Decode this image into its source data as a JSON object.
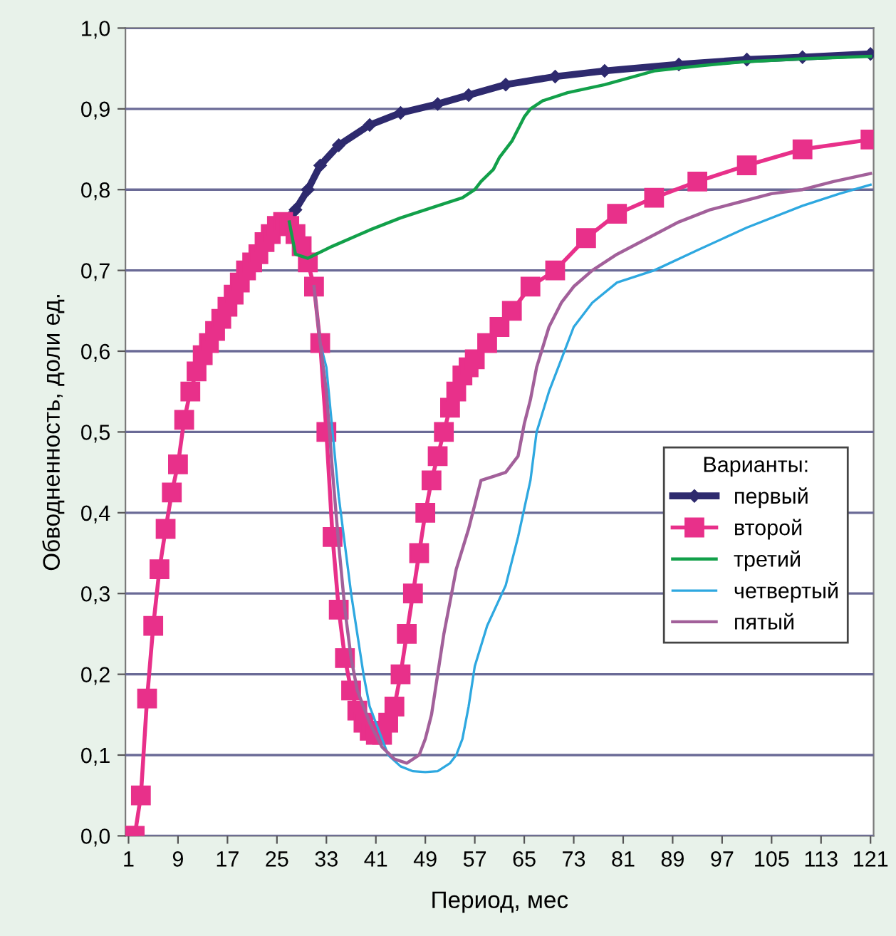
{
  "chart_data": {
    "type": "line",
    "xlabel": "Период, мес",
    "ylabel": "Обводненность, доли ед.",
    "legend_title": "Варианты:",
    "legend": "right",
    "grid": "y",
    "xlim": [
      0.5,
      121.5
    ],
    "xticks": [
      1,
      9,
      17,
      25,
      33,
      41,
      49,
      57,
      65,
      73,
      81,
      89,
      97,
      105,
      113,
      121
    ],
    "ylim": [
      0,
      1
    ],
    "yticks": [
      {
        "value": 0,
        "label": "0,0"
      },
      {
        "value": 0.1,
        "label": "0,1"
      },
      {
        "value": 0.2,
        "label": "0,2"
      },
      {
        "value": 0.3,
        "label": "0,3"
      },
      {
        "value": 0.4,
        "label": "0,4"
      },
      {
        "value": 0.5,
        "label": "0,5"
      },
      {
        "value": 0.6,
        "label": "0,6"
      },
      {
        "value": 0.7,
        "label": "0,7"
      },
      {
        "value": 0.8,
        "label": "0,8"
      },
      {
        "value": 0.9,
        "label": "0,9"
      },
      {
        "value": 1,
        "label": "1,0"
      }
    ],
    "series": [
      {
        "name": "первый",
        "color": "#2e2a6e",
        "marker": "diamond",
        "x": [
          26,
          27,
          28,
          30,
          32,
          35,
          40,
          45,
          51,
          56,
          62,
          70,
          78,
          90,
          101,
          110,
          121
        ],
        "values": [
          0.76,
          0.765,
          0.775,
          0.8,
          0.83,
          0.855,
          0.88,
          0.895,
          0.906,
          0.917,
          0.93,
          0.94,
          0.947,
          0.955,
          0.961,
          0.964,
          0.968
        ]
      },
      {
        "name": "второй",
        "color": "#e8308a",
        "marker": "square",
        "x": [
          1,
          2,
          3,
          4,
          5,
          6,
          7,
          8,
          9,
          10,
          11,
          12,
          13,
          14,
          15,
          16,
          17,
          18,
          19,
          20,
          21,
          22,
          23,
          24,
          25,
          26,
          27,
          28,
          29,
          30,
          31,
          32,
          33,
          34,
          35,
          36,
          37,
          38,
          39,
          40,
          41,
          42,
          43,
          44,
          45,
          46,
          47,
          48,
          49,
          50,
          51,
          52,
          53,
          54,
          55,
          56,
          57,
          59,
          61,
          63,
          66,
          70,
          75,
          80,
          86,
          93,
          101,
          110,
          121
        ],
        "values": [
          0,
          0,
          0.05,
          0.17,
          0.26,
          0.33,
          0.38,
          0.425,
          0.46,
          0.515,
          0.55,
          0.575,
          0.595,
          0.61,
          0.625,
          0.64,
          0.655,
          0.67,
          0.685,
          0.7,
          0.71,
          0.72,
          0.735,
          0.745,
          0.755,
          0.76,
          0.755,
          0.745,
          0.73,
          0.71,
          0.68,
          0.61,
          0.5,
          0.37,
          0.28,
          0.22,
          0.18,
          0.155,
          0.14,
          0.13,
          0.125,
          0.125,
          0.14,
          0.16,
          0.2,
          0.25,
          0.3,
          0.35,
          0.4,
          0.44,
          0.47,
          0.5,
          0.53,
          0.55,
          0.57,
          0.58,
          0.59,
          0.61,
          0.63,
          0.65,
          0.68,
          0.7,
          0.74,
          0.77,
          0.79,
          0.81,
          0.83,
          0.85,
          0.862
        ]
      },
      {
        "name": "третий",
        "color": "#12a04a",
        "marker": "none",
        "x": [
          27,
          28,
          30,
          34,
          40,
          45,
          51,
          55,
          57,
          58,
          60,
          61,
          63,
          65,
          66,
          68,
          72,
          78,
          86,
          93,
          100,
          110,
          121
        ],
        "values": [
          0.76,
          0.72,
          0.715,
          0.73,
          0.75,
          0.765,
          0.78,
          0.79,
          0.8,
          0.81,
          0.825,
          0.84,
          0.86,
          0.89,
          0.9,
          0.91,
          0.92,
          0.93,
          0.947,
          0.953,
          0.958,
          0.962,
          0.965
        ]
      },
      {
        "name": "четвертый",
        "color": "#2ea8e0",
        "marker": "none",
        "x": [
          31,
          32,
          33,
          34,
          35,
          36,
          37,
          38,
          39,
          40,
          42,
          43,
          45,
          47,
          49,
          51,
          53,
          54,
          55,
          56,
          57,
          59,
          62,
          64,
          66,
          67,
          69,
          71,
          73,
          76,
          80,
          86,
          93,
          101,
          110,
          116,
          121
        ],
        "values": [
          0.68,
          0.61,
          0.58,
          0.5,
          0.42,
          0.36,
          0.3,
          0.25,
          0.2,
          0.16,
          0.12,
          0.1,
          0.086,
          0.08,
          0.079,
          0.08,
          0.09,
          0.1,
          0.12,
          0.16,
          0.21,
          0.26,
          0.31,
          0.37,
          0.44,
          0.5,
          0.55,
          0.59,
          0.63,
          0.66,
          0.685,
          0.7,
          0.725,
          0.753,
          0.78,
          0.795,
          0.806
        ]
      },
      {
        "name": "пятый",
        "color": "#a2609a",
        "marker": "none",
        "x": [
          31,
          32,
          33,
          34,
          35,
          36,
          37,
          38,
          40,
          42,
          44,
          46,
          48,
          49,
          50,
          51,
          52,
          53,
          54,
          56,
          57,
          58,
          60,
          62,
          64,
          65,
          66,
          67,
          69,
          71,
          73,
          76,
          80,
          85,
          90,
          95,
          100,
          105,
          110,
          115,
          121
        ],
        "values": [
          0.68,
          0.61,
          0.55,
          0.45,
          0.36,
          0.28,
          0.22,
          0.18,
          0.14,
          0.11,
          0.095,
          0.09,
          0.1,
          0.12,
          0.15,
          0.2,
          0.25,
          0.29,
          0.33,
          0.38,
          0.41,
          0.44,
          0.445,
          0.45,
          0.47,
          0.51,
          0.54,
          0.58,
          0.63,
          0.66,
          0.68,
          0.7,
          0.72,
          0.74,
          0.76,
          0.775,
          0.785,
          0.795,
          0.8,
          0.81,
          0.82
        ]
      }
    ]
  }
}
